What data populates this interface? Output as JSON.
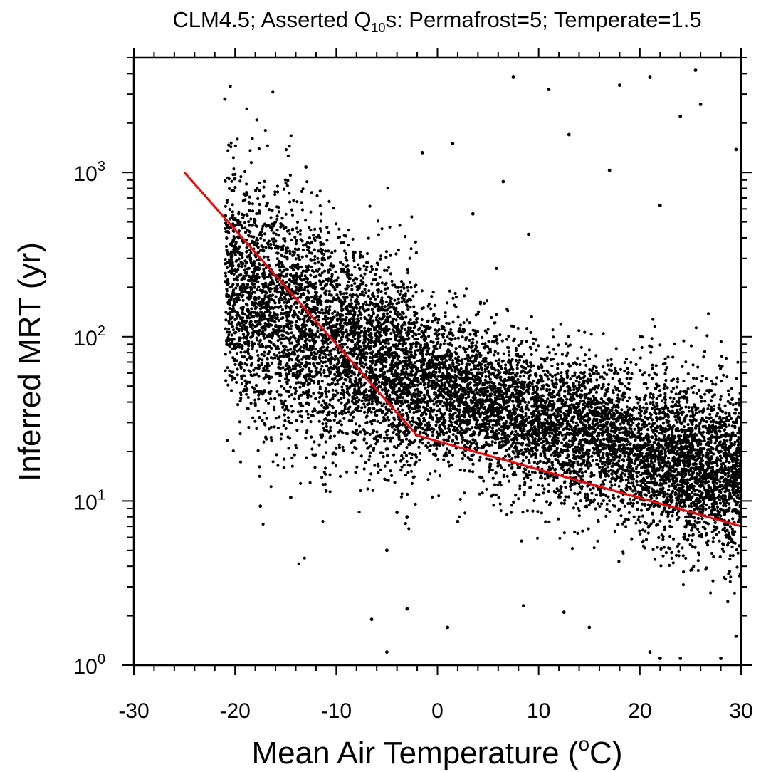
{
  "chart_data": {
    "type": "scatter",
    "title_parts": {
      "pre": "CLM4.5; Asserted Q",
      "sub": "10",
      "post": "s: Permafrost=5; Temperate=1.5"
    },
    "xlabel_parts": {
      "pre": "Mean Air Temperature (",
      "sup": "o",
      "post": "C)"
    },
    "ylabel": "Inferred MRT (yr)",
    "x_scale": "linear",
    "y_scale": "log",
    "xlim": [
      -30,
      30
    ],
    "ylim": [
      1,
      5000
    ],
    "x_ticks": [
      -30,
      -20,
      -10,
      0,
      10,
      20,
      30
    ],
    "x_tick_labels": [
      "-30",
      "-20",
      "-10",
      "0",
      "10",
      "20",
      "30"
    ],
    "y_tick_labels": [
      {
        "value": 1,
        "base": "10",
        "exp": "0"
      },
      {
        "value": 10,
        "base": "10",
        "exp": "1"
      },
      {
        "value": 100,
        "base": "10",
        "exp": "2"
      },
      {
        "value": 1000,
        "base": "10",
        "exp": "3"
      }
    ],
    "grid": false,
    "marker_color": "#000000",
    "line_color": "#ff0000",
    "series": [
      {
        "type": "line",
        "x": [
          -25,
          -2,
          30
        ],
        "y": [
          1000,
          25,
          7
        ]
      },
      {
        "type": "scatter",
        "note": "dense point cloud (~10000 points) summarized by trend bands",
        "bands": [
          {
            "x": [
              -21,
              -10
            ],
            "y_center": [
              220,
              90
            ],
            "log_spread": 0.35,
            "count": 2300
          },
          {
            "x": [
              -10,
              -2
            ],
            "y_center": [
              90,
              55
            ],
            "log_spread": 0.3,
            "count": 1800
          },
          {
            "x": [
              -2,
              20
            ],
            "y_center": [
              55,
              20
            ],
            "log_spread": 0.22,
            "count": 4000
          },
          {
            "x": [
              20,
              30
            ],
            "y_center": [
              20,
              14
            ],
            "log_spread": 0.25,
            "count": 2200
          }
        ],
        "outliers": [
          {
            "x": -21,
            "y": 2800
          },
          {
            "x": -13,
            "y": 1080
          },
          {
            "x": -1.5,
            "y": 1320
          },
          {
            "x": 1.5,
            "y": 1500
          },
          {
            "x": 7.5,
            "y": 3800
          },
          {
            "x": 11,
            "y": 3200
          },
          {
            "x": 13,
            "y": 1700
          },
          {
            "x": 17,
            "y": 1030
          },
          {
            "x": 18,
            "y": 3400
          },
          {
            "x": 21,
            "y": 3800
          },
          {
            "x": 24,
            "y": 2200
          },
          {
            "x": 25.5,
            "y": 4200
          },
          {
            "x": 26,
            "y": 2600
          },
          {
            "x": 29.5,
            "y": 1380
          },
          {
            "x": 6.5,
            "y": 880
          },
          {
            "x": 9,
            "y": 420
          },
          {
            "x": 3.5,
            "y": 560
          },
          {
            "x": 22,
            "y": 630
          },
          {
            "x": -5,
            "y": 1.2
          },
          {
            "x": -6.5,
            "y": 1.9
          },
          {
            "x": -3,
            "y": 2.2
          },
          {
            "x": 1,
            "y": 1.7
          },
          {
            "x": 8.5,
            "y": 2.3
          },
          {
            "x": 12.5,
            "y": 2.1
          },
          {
            "x": 15,
            "y": 1.7
          },
          {
            "x": 21,
            "y": 1.2
          },
          {
            "x": 22,
            "y": 1.1
          },
          {
            "x": 24,
            "y": 1.1
          },
          {
            "x": 28,
            "y": 1.1
          },
          {
            "x": 29.5,
            "y": 1.5
          },
          {
            "x": -4,
            "y": 8.5
          },
          {
            "x": -3,
            "y": 8
          },
          {
            "x": -5,
            "y": 5
          },
          {
            "x": 2,
            "y": 7.5
          },
          {
            "x": -17.5,
            "y": 9.3
          },
          {
            "x": -14.5,
            "y": 10.5
          },
          {
            "x": -11,
            "y": 11.5
          }
        ]
      }
    ]
  }
}
